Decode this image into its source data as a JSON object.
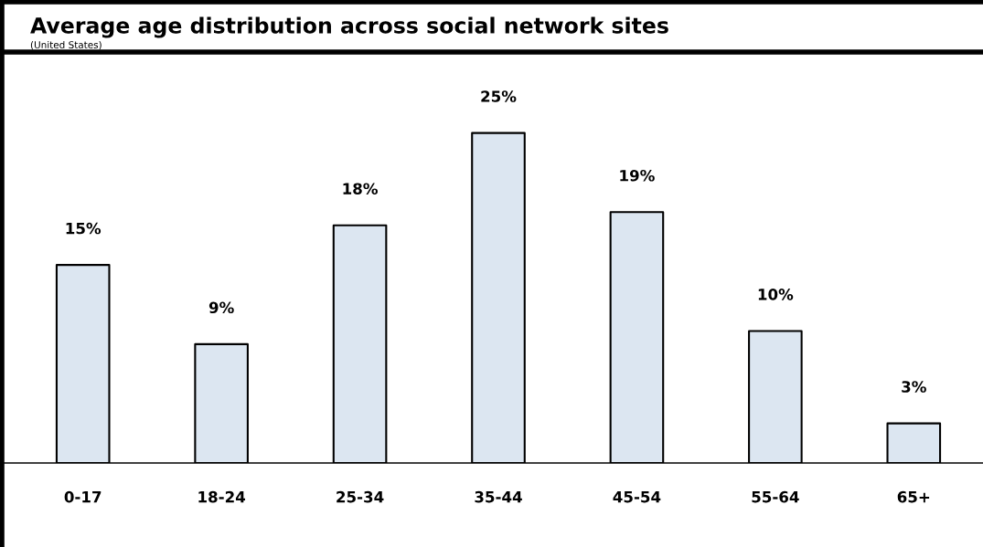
{
  "chart_data": {
    "type": "bar",
    "title": "Average age distribution across social network sites",
    "subtitle": "(United States)",
    "categories": [
      "0-17",
      "18-24",
      "25-34",
      "35-44",
      "45-54",
      "55-64",
      "65+"
    ],
    "values": [
      15,
      9,
      18,
      25,
      19,
      10,
      3
    ],
    "color": "#dce6f1",
    "data_labels": true,
    "value_labels": [
      "15%",
      "9%",
      "18%",
      "25%",
      "19%",
      "10%",
      "3%"
    ],
    "grid": false,
    "legend": false
  }
}
